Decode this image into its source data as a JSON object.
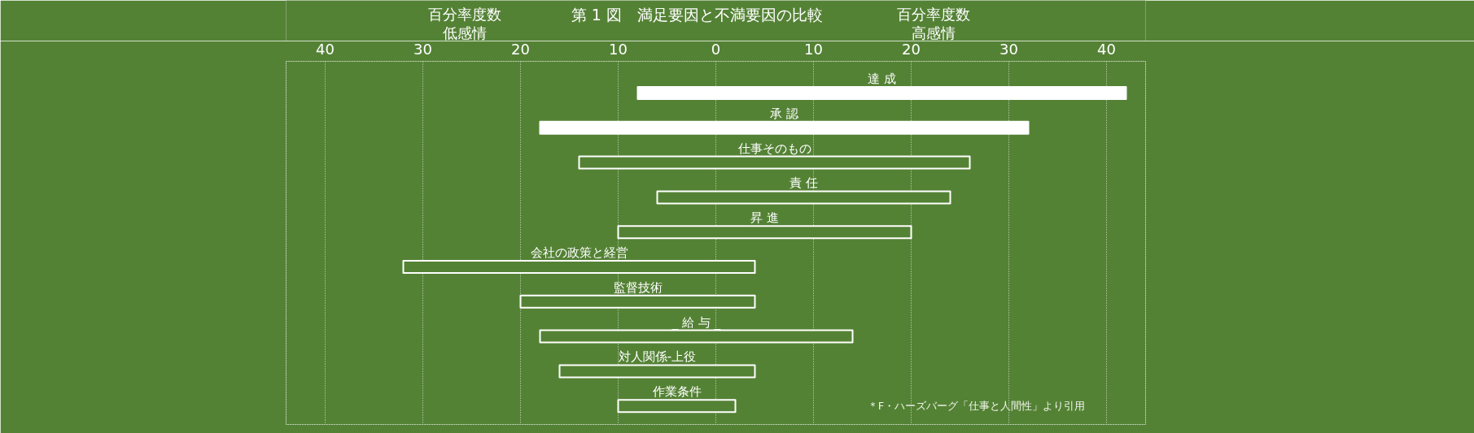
{
  "chart_data": {
    "type": "bar",
    "orientation": "horizontal",
    "title": "第 1 図　満足要因と不満要因の比較",
    "categories": [
      "達 成",
      "承 認",
      "仕事そのもの",
      "責 任",
      "昇 進",
      "会社の政策と経営",
      "監督技術",
      "_ 給 与 _",
      "対人関係-上役",
      "作業条件"
    ],
    "values": [
      50,
      50,
      40,
      30,
      30,
      36,
      24,
      32,
      20,
      12
    ],
    "base": [
      -8,
      -18,
      -14,
      -6,
      -10,
      -32,
      -20,
      -18,
      -16,
      -10
    ],
    "color": "#ffffff",
    "colors": [
      "#ffffff",
      "#ffffff",
      "#548235",
      "#548235",
      "#548235",
      "#548235",
      "#548235",
      "#548235",
      "#548235",
      "#548235"
    ],
    "xlim": [
      -44,
      44
    ],
    "xticks": [
      {
        "value": -40,
        "label": "40"
      },
      {
        "value": -30,
        "label": "30"
      },
      {
        "value": -20,
        "label": "20"
      },
      {
        "value": -10,
        "label": "10"
      },
      0,
      10,
      20,
      30,
      40
    ],
    "grid": "x",
    "annotations": [
      "百分率度数",
      "低感情",
      "百分率度数",
      "高感情",
      "＊F・ハーズバーグ「仕事と人間性」より引用"
    ]
  }
}
